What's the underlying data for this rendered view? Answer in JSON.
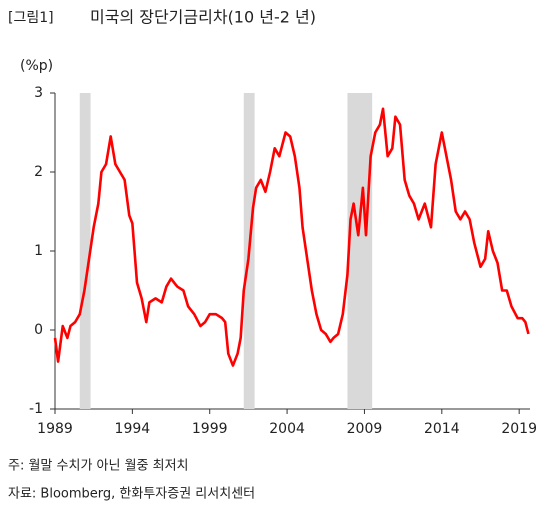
{
  "chart_data": {
    "type": "line",
    "title_tag": "[그림1]",
    "title": "미국의 장단기금리차(10 년-2 년)",
    "y_unit": "(%p)",
    "notes": [
      "주: 월말 수치가 아닌 월중 최저치",
      "자료: Bloomberg, 한화투자증권 리서치센터"
    ],
    "x": [
      1989.0,
      1989.2,
      1989.5,
      1989.8,
      1990.0,
      1990.3,
      1990.6,
      1990.9,
      1991.2,
      1991.5,
      1991.8,
      1992.0,
      1992.3,
      1992.6,
      1992.9,
      1993.2,
      1993.5,
      1993.8,
      1994.0,
      1994.3,
      1994.6,
      1994.9,
      1995.1,
      1995.5,
      1995.9,
      1996.2,
      1996.5,
      1996.9,
      1997.3,
      1997.6,
      1998.0,
      1998.4,
      1998.7,
      1999.0,
      1999.4,
      1999.8,
      2000.0,
      2000.2,
      2000.5,
      2000.8,
      2001.0,
      2001.2,
      2001.5,
      2001.8,
      2002.0,
      2002.3,
      2002.6,
      2002.9,
      2003.2,
      2003.5,
      2003.9,
      2004.2,
      2004.5,
      2004.8,
      2005.0,
      2005.3,
      2005.6,
      2005.9,
      2006.2,
      2006.5,
      2006.8,
      2007.0,
      2007.3,
      2007.6,
      2007.9,
      2008.1,
      2008.3,
      2008.6,
      2008.9,
      2009.1,
      2009.4,
      2009.7,
      2010.0,
      2010.2,
      2010.5,
      2010.8,
      2011.0,
      2011.3,
      2011.6,
      2011.9,
      2012.2,
      2012.5,
      2012.9,
      2013.3,
      2013.6,
      2013.9,
      2014.0,
      2014.3,
      2014.6,
      2014.9,
      2015.2,
      2015.5,
      2015.8,
      2016.1,
      2016.5,
      2016.8,
      2017.0,
      2017.3,
      2017.6,
      2017.9,
      2018.2,
      2018.5,
      2018.9,
      2019.2,
      2019.4,
      2019.6
    ],
    "values": [
      -0.1,
      -0.4,
      0.05,
      -0.1,
      0.05,
      0.1,
      0.2,
      0.5,
      0.9,
      1.3,
      1.6,
      2.0,
      2.1,
      2.45,
      2.1,
      2.0,
      1.9,
      1.45,
      1.35,
      0.6,
      0.4,
      0.1,
      0.35,
      0.4,
      0.35,
      0.55,
      0.65,
      0.55,
      0.5,
      0.3,
      0.2,
      0.05,
      0.1,
      0.2,
      0.2,
      0.15,
      0.1,
      -0.3,
      -0.45,
      -0.3,
      -0.1,
      0.5,
      0.9,
      1.55,
      1.8,
      1.9,
      1.75,
      2.0,
      2.3,
      2.2,
      2.5,
      2.45,
      2.2,
      1.8,
      1.3,
      0.9,
      0.5,
      0.2,
      0.0,
      -0.05,
      -0.15,
      -0.1,
      -0.05,
      0.2,
      0.7,
      1.4,
      1.6,
      1.2,
      1.8,
      1.2,
      2.2,
      2.5,
      2.6,
      2.8,
      2.2,
      2.3,
      2.7,
      2.6,
      1.9,
      1.7,
      1.6,
      1.4,
      1.6,
      1.3,
      2.1,
      2.4,
      2.5,
      2.2,
      1.9,
      1.5,
      1.4,
      1.5,
      1.4,
      1.1,
      0.8,
      0.9,
      1.25,
      1.0,
      0.85,
      0.5,
      0.5,
      0.3,
      0.15,
      0.15,
      0.1,
      -0.05
    ],
    "color": "#ff0000",
    "shaded_ranges": [
      [
        1990.6,
        1991.3
      ],
      [
        2001.2,
        2001.9
      ],
      [
        2007.9,
        2009.5
      ]
    ],
    "shade_color": "#d9d9d9",
    "xlim": [
      1989,
      2019.7
    ],
    "xticks": [
      1989,
      1994,
      1999,
      2004,
      2009,
      2014,
      2019
    ],
    "ylim": [
      -1,
      3
    ],
    "yticks": [
      -1,
      0,
      1,
      2,
      3
    ]
  }
}
